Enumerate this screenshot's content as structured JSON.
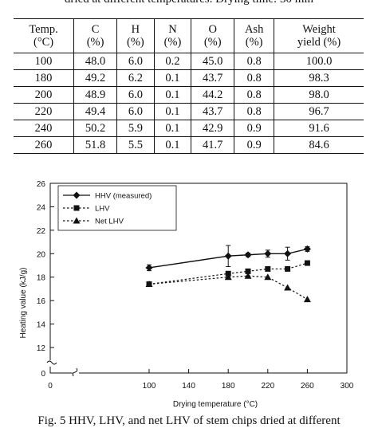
{
  "top_caption": "dried at different temperatures. Drying time: 30 min",
  "table": {
    "headers": [
      [
        "Temp.",
        "(°C)"
      ],
      [
        "C",
        "(%)"
      ],
      [
        "H",
        "(%)"
      ],
      [
        "N",
        "(%)"
      ],
      [
        "O",
        "(%)"
      ],
      [
        "Ash",
        "(%)"
      ],
      [
        "Weight",
        "yield (%)"
      ]
    ],
    "rows": [
      [
        "100",
        "48.0",
        "6.0",
        "0.2",
        "45.0",
        "0.8",
        "100.0"
      ],
      [
        "180",
        "49.2",
        "6.2",
        "0.1",
        "43.7",
        "0.8",
        "98.3"
      ],
      [
        "200",
        "48.9",
        "6.0",
        "0.1",
        "44.2",
        "0.8",
        "98.0"
      ],
      [
        "220",
        "49.4",
        "6.0",
        "0.1",
        "43.7",
        "0.8",
        "96.7"
      ],
      [
        "240",
        "50.2",
        "5.9",
        "0.1",
        "42.9",
        "0.9",
        "91.6"
      ],
      [
        "260",
        "51.8",
        "5.5",
        "0.1",
        "41.7",
        "0.9",
        "84.6"
      ]
    ]
  },
  "bottom_caption": "Fig. 5   HHV, LHV, and net LHV of stem chips dried at different",
  "chart_data": {
    "type": "line",
    "xlabel": "Drying temperature (°C)",
    "ylabel": "Heating value (kJ/g)",
    "xlim": [
      0,
      300
    ],
    "ylim": [
      0,
      26
    ],
    "axis_break": true,
    "xticks": [
      0,
      100,
      140,
      180,
      220,
      260,
      300
    ],
    "yticks": [
      0,
      12,
      14,
      16,
      18,
      20,
      22,
      24,
      26
    ],
    "x": [
      100,
      180,
      200,
      220,
      240,
      260
    ],
    "legend_position": "top-left",
    "grid": false,
    "series": [
      {
        "name": "HHV (measured)",
        "marker": "diamond",
        "line": "solid",
        "values": [
          18.8,
          19.8,
          19.9,
          20.0,
          20.0,
          20.4
        ],
        "errors": [
          0.25,
          0.9,
          0.15,
          0.3,
          0.55,
          0.2
        ]
      },
      {
        "name": "LHV",
        "marker": "square",
        "line": "dashed",
        "values": [
          17.4,
          18.3,
          18.5,
          18.7,
          18.7,
          19.2
        ]
      },
      {
        "name": "Net LHV",
        "marker": "triangle",
        "line": "dashed",
        "values": [
          17.4,
          18.0,
          18.1,
          18.0,
          17.1,
          16.1
        ]
      }
    ]
  }
}
